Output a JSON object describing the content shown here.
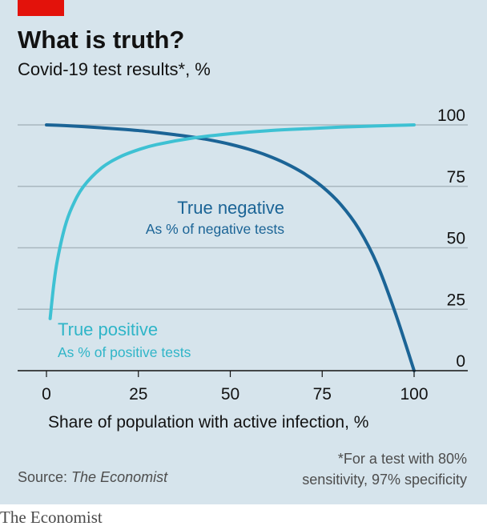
{
  "header": {
    "title": "What is truth?",
    "subtitle": "Covid-19 test results*, %"
  },
  "footer": {
    "source_label": "Source: ",
    "source_name": "The Economist",
    "footnote_line1": "*For a test with 80%",
    "footnote_line2": "sensitivity, 97% specificity",
    "brand": "The Economist"
  },
  "colors": {
    "background": "#d6e4ec",
    "true_negative": "#1b6496",
    "true_positive": "#3ec1d3",
    "brand_red": "#e3120b",
    "gridline": "#a9b7bf"
  },
  "chart_data": {
    "type": "line",
    "title": "What is truth?",
    "subtitle": "Covid-19 test results*, %",
    "xlabel": "Share of population with active infection, %",
    "ylabel": "",
    "xlim": [
      0,
      100
    ],
    "ylim": [
      0,
      100
    ],
    "x_ticks": [
      "0",
      "25",
      "50",
      "75",
      "100"
    ],
    "y_ticks": [
      "0",
      "25",
      "50",
      "75",
      "100"
    ],
    "grid": "horizontal",
    "y_axis_side": "right",
    "series": [
      {
        "name": "True negative",
        "annotation": "As % of negative tests",
        "color": "#1b6496",
        "x": [
          0,
          5,
          10,
          15,
          20,
          25,
          30,
          35,
          40,
          45,
          50,
          55,
          60,
          65,
          70,
          75,
          80,
          85,
          90,
          95,
          100
        ],
        "y": [
          100,
          99.7,
          99.3,
          98.8,
          98.3,
          97.7,
          96.9,
          96.0,
          95.0,
          93.7,
          92.1,
          90.1,
          87.6,
          84.4,
          80.3,
          74.9,
          67.7,
          57.6,
          43.1,
          23.0,
          0
        ]
      },
      {
        "name": "True positive",
        "annotation": "As % of positive tests",
        "color": "#3ec1d3",
        "x": [
          1,
          2,
          3,
          5,
          7,
          10,
          15,
          20,
          25,
          30,
          40,
          50,
          60,
          70,
          80,
          90,
          100
        ],
        "y": [
          21.2,
          35.2,
          45.2,
          58.4,
          66.7,
          74.8,
          82.5,
          87.0,
          89.9,
          92.0,
          94.7,
          96.4,
          97.6,
          98.4,
          99.1,
          99.6,
          100
        ]
      }
    ]
  }
}
